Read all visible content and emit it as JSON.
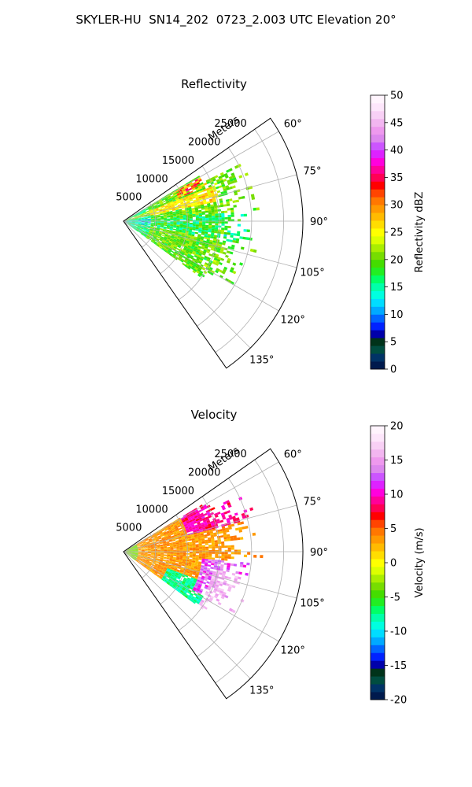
{
  "figure": {
    "suptitle": "SKYLER-HU  SN14_202  0723_2.003 UTC Elevation 20°"
  },
  "chart_data": [
    {
      "type": "polar_sector",
      "title": "Reflectivity",
      "radial_axis_label": "Meters",
      "radial_ticks": [
        5000,
        10000,
        15000,
        20000,
        25000
      ],
      "radial_tick_labels": [
        "5000",
        "10000",
        "15000",
        "20000",
        "25000"
      ],
      "radial_max": 28000,
      "theta_ticks": [
        60,
        75,
        90,
        105,
        120,
        135
      ],
      "theta_tick_labels": [
        "60°",
        "75°",
        "90°",
        "105°",
        "120°",
        "135°"
      ],
      "theta_range_deg": [
        55,
        145
      ],
      "grid": true,
      "colorbar": {
        "label": "Reflectivity dBZ",
        "vmin": 0,
        "vmax": 50,
        "ticks": [
          0,
          5,
          10,
          15,
          20,
          25,
          30,
          35,
          40,
          45,
          50
        ],
        "tick_labels": [
          "0",
          "5",
          "10",
          "15",
          "20",
          "25",
          "30",
          "35",
          "40",
          "45",
          "50"
        ],
        "colors": [
          "#001a4d",
          "#003366",
          "#004d40",
          "#00331a",
          "#0000aa",
          "#0022ff",
          "#0066ff",
          "#00aaff",
          "#00ddff",
          "#00ffe0",
          "#00ffaa",
          "#00ff66",
          "#22ee22",
          "#44dd00",
          "#77dd00",
          "#aaee00",
          "#ddff00",
          "#ffff00",
          "#ffdd00",
          "#ffbb00",
          "#ff9900",
          "#ff7700",
          "#ff4400",
          "#ff0000",
          "#ff0055",
          "#ff0099",
          "#ff00dd",
          "#dd22ff",
          "#cc55ff",
          "#dd88ee",
          "#ee99ee",
          "#f2b6f0",
          "#f8d0f5",
          "#fde6fb",
          "#fff4fd"
        ]
      },
      "field_summary": {
        "description_levels": {
          "core_dbz": 35,
          "typical_dbz": 18,
          "edge_dbz": 12
        },
        "approx_max_range_m": 22000,
        "azimuth_coverage_deg": [
          60,
          125
        ]
      }
    },
    {
      "type": "polar_sector",
      "title": "Velocity",
      "radial_axis_label": "Meters",
      "radial_ticks": [
        5000,
        10000,
        15000,
        20000,
        25000
      ],
      "radial_tick_labels": [
        "5000",
        "10000",
        "15000",
        "20000",
        "25000"
      ],
      "radial_max": 28000,
      "theta_ticks": [
        60,
        75,
        90,
        105,
        120,
        135
      ],
      "theta_tick_labels": [
        "60°",
        "75°",
        "90°",
        "105°",
        "120°",
        "135°"
      ],
      "theta_range_deg": [
        55,
        145
      ],
      "grid": true,
      "colorbar": {
        "label": "Velocity (m/s)",
        "vmin": -20,
        "vmax": 20,
        "ticks": [
          -20,
          -15,
          -10,
          -5,
          0,
          5,
          10,
          15,
          20
        ],
        "tick_labels": [
          "-20",
          "-15",
          "-10",
          "-5",
          "0",
          "5",
          "10",
          "15",
          "20"
        ],
        "colors": [
          "#001a4d",
          "#003366",
          "#004d40",
          "#00331a",
          "#0000aa",
          "#0022ff",
          "#0066ff",
          "#00aaff",
          "#00ddff",
          "#00ffe0",
          "#00ffaa",
          "#00ff66",
          "#22ee22",
          "#44dd00",
          "#77dd00",
          "#aaee00",
          "#ddff00",
          "#ffff00",
          "#ffdd00",
          "#ffbb00",
          "#ff9900",
          "#ff7700",
          "#ff4400",
          "#ff0000",
          "#ff0055",
          "#ff0099",
          "#ff00dd",
          "#dd22ff",
          "#cc55ff",
          "#dd88ee",
          "#ee99ee",
          "#f2b6f0",
          "#f8d0f5",
          "#fde6fb",
          "#fff4fd"
        ]
      },
      "field_summary": {
        "approx_max_range_m": 22000,
        "azimuth_coverage_deg": [
          60,
          125
        ]
      }
    }
  ]
}
